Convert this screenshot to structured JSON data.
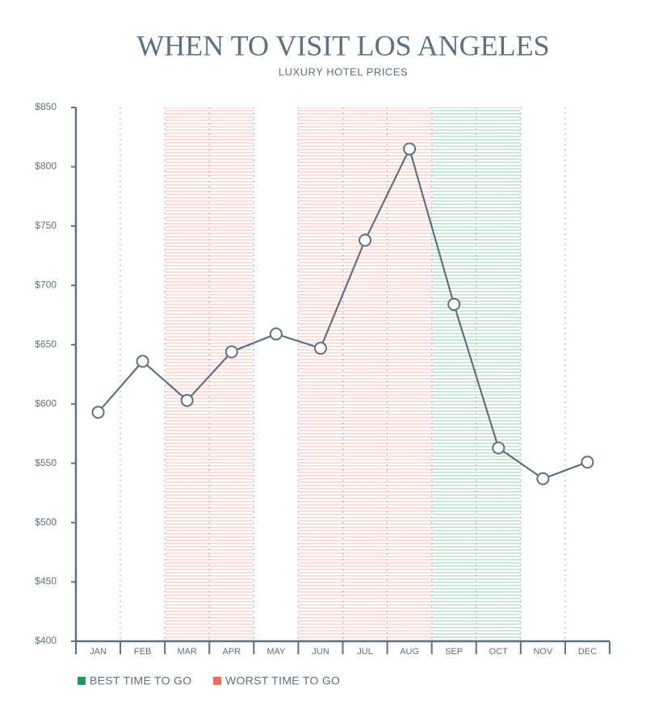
{
  "chart_data": {
    "type": "line",
    "title": "WHEN TO VISIT LOS ANGELES",
    "subtitle": "LUXURY HOTEL PRICES",
    "categories": [
      "JAN",
      "FEB",
      "MAR",
      "APR",
      "MAY",
      "JUN",
      "JUL",
      "AUG",
      "SEP",
      "OCT",
      "NOV",
      "DEC"
    ],
    "series": [
      {
        "name": "Luxury hotel price",
        "color": "#5d7180",
        "values": [
          593,
          636,
          603,
          644,
          659,
          647,
          738,
          815,
          684,
          563,
          537,
          551
        ]
      }
    ],
    "ylim": [
      400,
      850
    ],
    "yticks": [
      {
        "value": 400,
        "label": "$400"
      },
      {
        "value": 450,
        "label": "$450"
      },
      {
        "value": 500,
        "label": "$500"
      },
      {
        "value": 550,
        "label": "$550"
      },
      {
        "value": 600,
        "label": "$600"
      },
      {
        "value": 650,
        "label": "$650"
      },
      {
        "value": 700,
        "label": "$700"
      },
      {
        "value": 750,
        "label": "$750"
      },
      {
        "value": 800,
        "label": "$800"
      },
      {
        "value": 850,
        "label": "$850"
      }
    ],
    "legend": [
      {
        "name": "BEST TIME TO GO",
        "color": "#1e9e55"
      },
      {
        "name": "WORST TIME TO GO",
        "color": "#ee6a5c"
      }
    ],
    "bands": [
      {
        "start": "MAR",
        "end": "APR",
        "color": "#ee6a5c"
      },
      {
        "start": "JUN",
        "end": "AUG",
        "color": "#ee6a5c"
      },
      {
        "start": "SEP",
        "end": "OCT",
        "color": "#1e9e55"
      }
    ]
  }
}
